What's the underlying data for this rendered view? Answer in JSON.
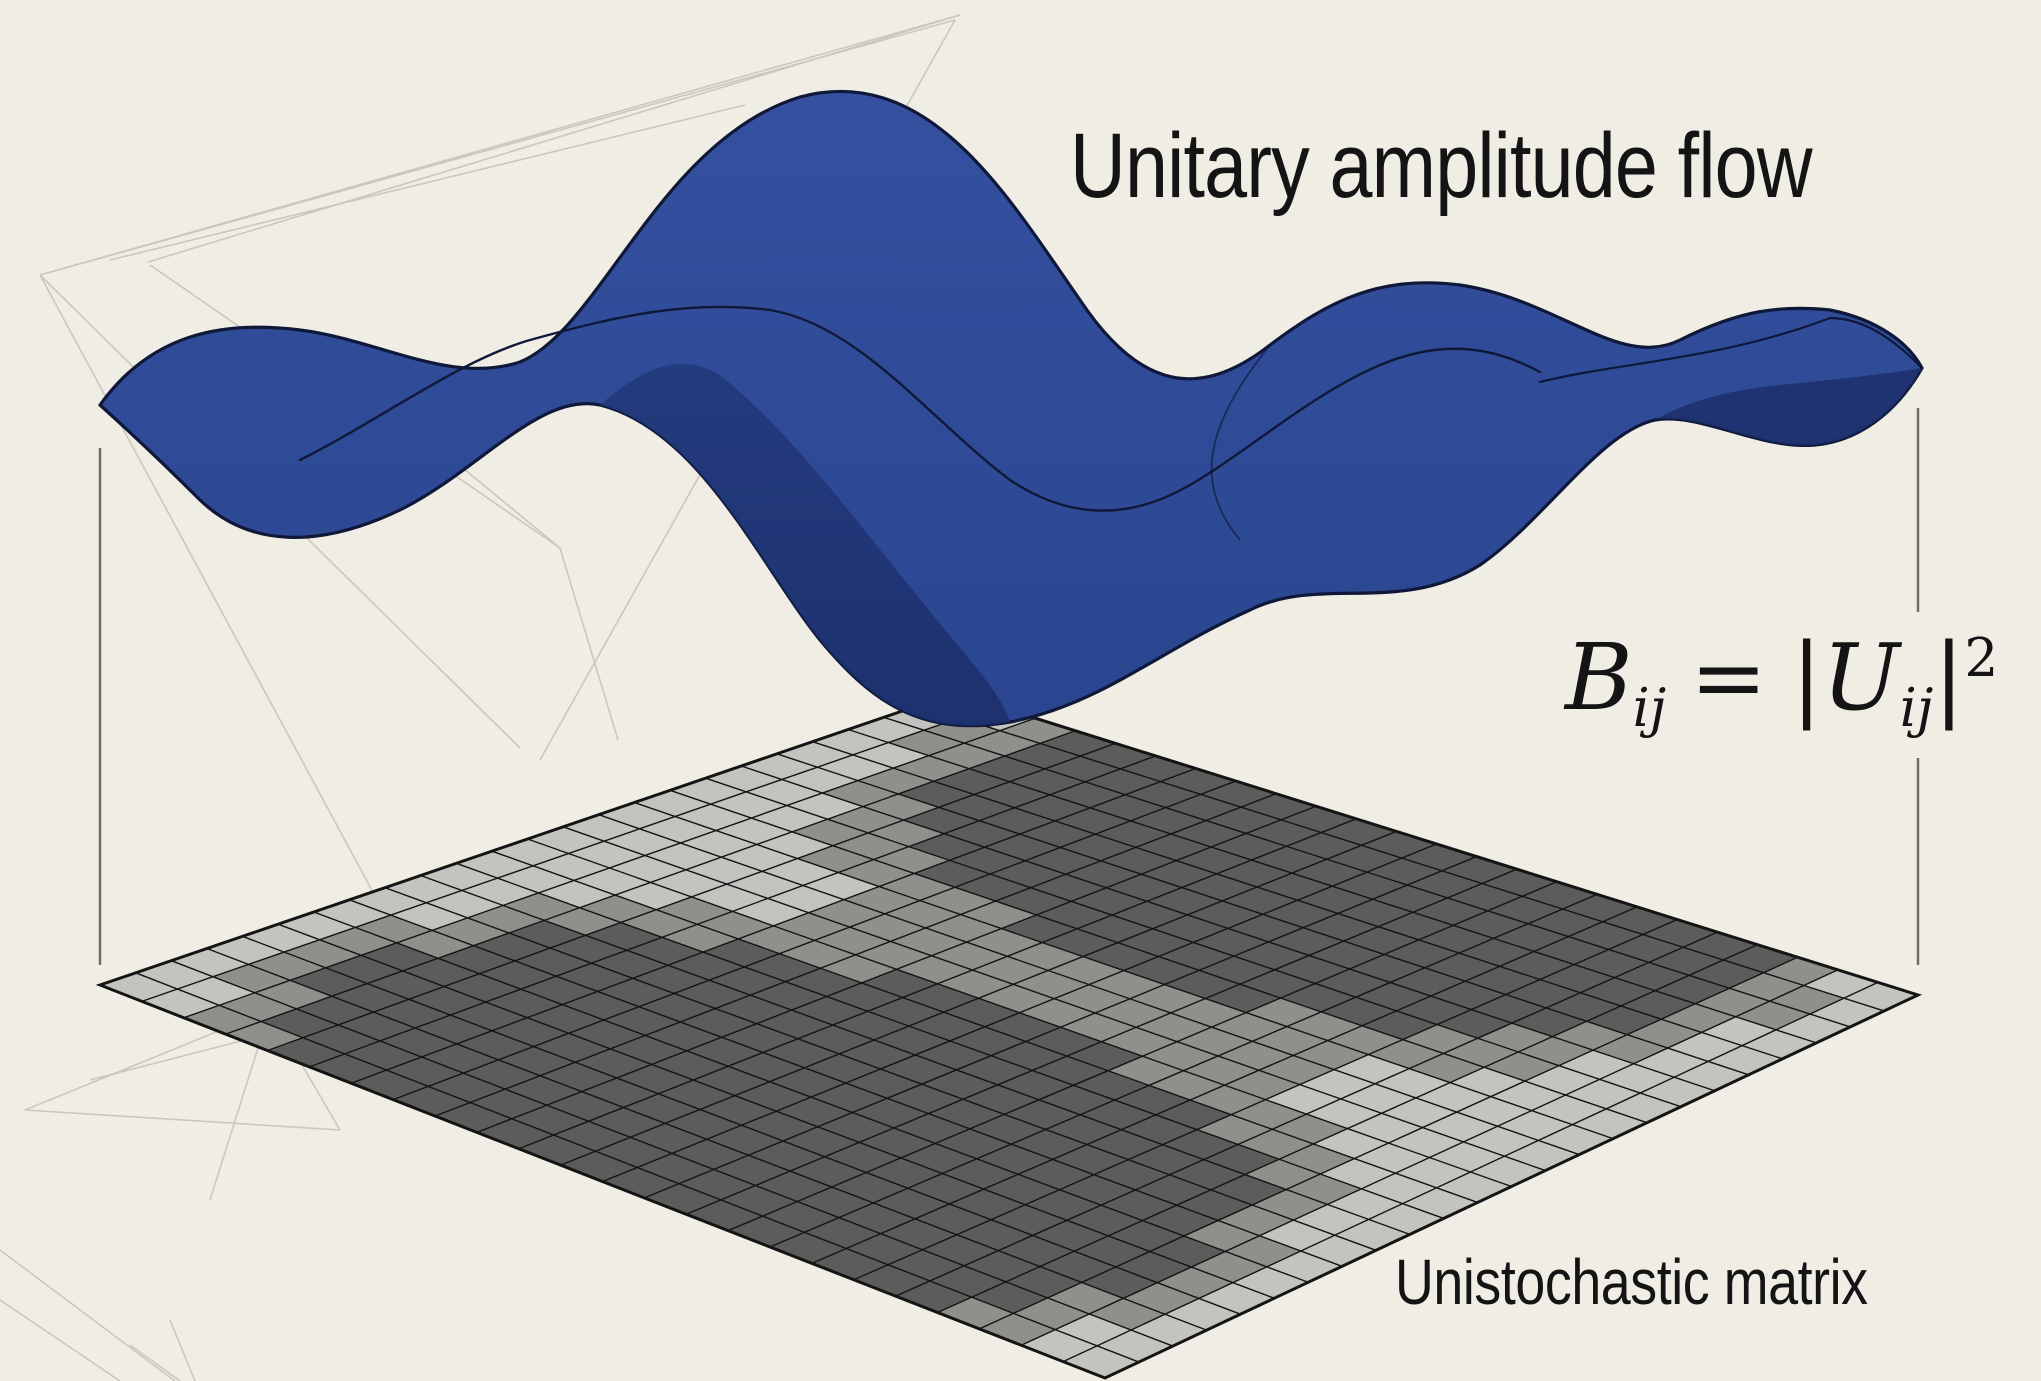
{
  "labels": {
    "title": "Unitary amplitude flow",
    "bottom": "Unistochastic matrix"
  },
  "equation": {
    "lhs_symbol": "B",
    "lhs_subscript": "ij",
    "operator": "=",
    "bar_left": "|",
    "rhs_symbol": "U",
    "rhs_subscript": "ij",
    "bar_right": "|",
    "exponent": "2"
  },
  "grid": {
    "rows": 24,
    "cols": 24
  },
  "colors": {
    "background": "#efede4",
    "wave_fill": "#2b4690",
    "wave_dark": "#1c2f6b",
    "wave_outline": "#0f1838",
    "grid_light": "#c3c3c0",
    "grid_dark": "#5c5c5a",
    "grid_line": "#141414",
    "sketch_line": "#c9c7be"
  },
  "icons": {
    "wave_surface": "wave-surface-icon",
    "matrix_grid": "matrix-grid-icon"
  }
}
